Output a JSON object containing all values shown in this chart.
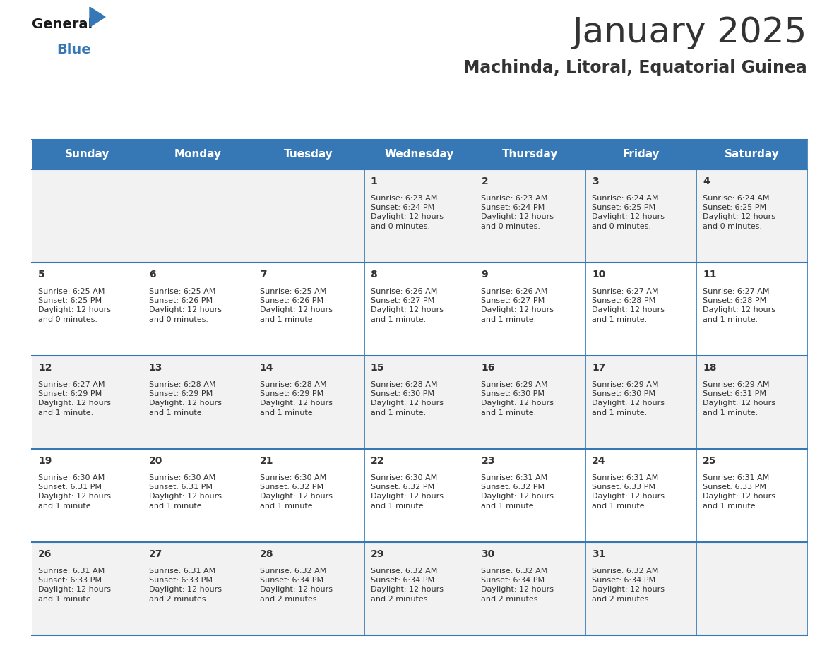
{
  "title": "January 2025",
  "subtitle": "Machinda, Litoral, Equatorial Guinea",
  "header_color": "#3578B5",
  "header_text_color": "#FFFFFF",
  "cell_bg_odd": "#F2F2F2",
  "cell_bg_even": "#FFFFFF",
  "text_color": "#333333",
  "line_color": "#3578B5",
  "days_of_week": [
    "Sunday",
    "Monday",
    "Tuesday",
    "Wednesday",
    "Thursday",
    "Friday",
    "Saturday"
  ],
  "weeks": [
    [
      "",
      "",
      "",
      "1",
      "2",
      "3",
      "4"
    ],
    [
      "5",
      "6",
      "7",
      "8",
      "9",
      "10",
      "11"
    ],
    [
      "12",
      "13",
      "14",
      "15",
      "16",
      "17",
      "18"
    ],
    [
      "19",
      "20",
      "21",
      "22",
      "23",
      "24",
      "25"
    ],
    [
      "26",
      "27",
      "28",
      "29",
      "30",
      "31",
      ""
    ]
  ],
  "cell_data": {
    "1": "Sunrise: 6:23 AM\nSunset: 6:24 PM\nDaylight: 12 hours\nand 0 minutes.",
    "2": "Sunrise: 6:23 AM\nSunset: 6:24 PM\nDaylight: 12 hours\nand 0 minutes.",
    "3": "Sunrise: 6:24 AM\nSunset: 6:25 PM\nDaylight: 12 hours\nand 0 minutes.",
    "4": "Sunrise: 6:24 AM\nSunset: 6:25 PM\nDaylight: 12 hours\nand 0 minutes.",
    "5": "Sunrise: 6:25 AM\nSunset: 6:25 PM\nDaylight: 12 hours\nand 0 minutes.",
    "6": "Sunrise: 6:25 AM\nSunset: 6:26 PM\nDaylight: 12 hours\nand 0 minutes.",
    "7": "Sunrise: 6:25 AM\nSunset: 6:26 PM\nDaylight: 12 hours\nand 1 minute.",
    "8": "Sunrise: 6:26 AM\nSunset: 6:27 PM\nDaylight: 12 hours\nand 1 minute.",
    "9": "Sunrise: 6:26 AM\nSunset: 6:27 PM\nDaylight: 12 hours\nand 1 minute.",
    "10": "Sunrise: 6:27 AM\nSunset: 6:28 PM\nDaylight: 12 hours\nand 1 minute.",
    "11": "Sunrise: 6:27 AM\nSunset: 6:28 PM\nDaylight: 12 hours\nand 1 minute.",
    "12": "Sunrise: 6:27 AM\nSunset: 6:29 PM\nDaylight: 12 hours\nand 1 minute.",
    "13": "Sunrise: 6:28 AM\nSunset: 6:29 PM\nDaylight: 12 hours\nand 1 minute.",
    "14": "Sunrise: 6:28 AM\nSunset: 6:29 PM\nDaylight: 12 hours\nand 1 minute.",
    "15": "Sunrise: 6:28 AM\nSunset: 6:30 PM\nDaylight: 12 hours\nand 1 minute.",
    "16": "Sunrise: 6:29 AM\nSunset: 6:30 PM\nDaylight: 12 hours\nand 1 minute.",
    "17": "Sunrise: 6:29 AM\nSunset: 6:30 PM\nDaylight: 12 hours\nand 1 minute.",
    "18": "Sunrise: 6:29 AM\nSunset: 6:31 PM\nDaylight: 12 hours\nand 1 minute.",
    "19": "Sunrise: 6:30 AM\nSunset: 6:31 PM\nDaylight: 12 hours\nand 1 minute.",
    "20": "Sunrise: 6:30 AM\nSunset: 6:31 PM\nDaylight: 12 hours\nand 1 minute.",
    "21": "Sunrise: 6:30 AM\nSunset: 6:32 PM\nDaylight: 12 hours\nand 1 minute.",
    "22": "Sunrise: 6:30 AM\nSunset: 6:32 PM\nDaylight: 12 hours\nand 1 minute.",
    "23": "Sunrise: 6:31 AM\nSunset: 6:32 PM\nDaylight: 12 hours\nand 1 minute.",
    "24": "Sunrise: 6:31 AM\nSunset: 6:33 PM\nDaylight: 12 hours\nand 1 minute.",
    "25": "Sunrise: 6:31 AM\nSunset: 6:33 PM\nDaylight: 12 hours\nand 1 minute.",
    "26": "Sunrise: 6:31 AM\nSunset: 6:33 PM\nDaylight: 12 hours\nand 1 minute.",
    "27": "Sunrise: 6:31 AM\nSunset: 6:33 PM\nDaylight: 12 hours\nand 2 minutes.",
    "28": "Sunrise: 6:32 AM\nSunset: 6:34 PM\nDaylight: 12 hours\nand 2 minutes.",
    "29": "Sunrise: 6:32 AM\nSunset: 6:34 PM\nDaylight: 12 hours\nand 2 minutes.",
    "30": "Sunrise: 6:32 AM\nSunset: 6:34 PM\nDaylight: 12 hours\nand 2 minutes.",
    "31": "Sunrise: 6:32 AM\nSunset: 6:34 PM\nDaylight: 12 hours\nand 2 minutes."
  },
  "logo_text_general": "General",
  "logo_text_blue": "Blue",
  "logo_color_general": "#1a1a1a",
  "logo_color_blue": "#3578B5",
  "logo_triangle_color": "#3578B5",
  "title_fontsize": 36,
  "subtitle_fontsize": 17,
  "header_fontsize": 11,
  "day_num_fontsize": 10,
  "cell_text_fontsize": 8
}
